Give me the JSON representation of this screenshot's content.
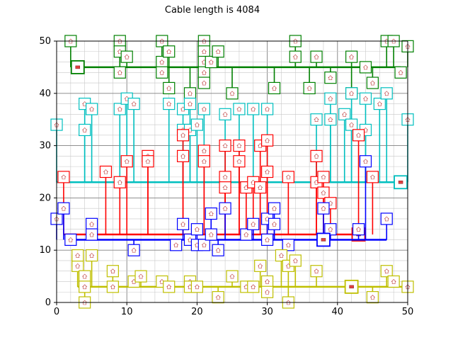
{
  "chart_data": {
    "type": "scatter",
    "title": "Cable length is 4084",
    "xlim": [
      0,
      50
    ],
    "ylim": [
      0,
      50
    ],
    "xticks": [
      0,
      10,
      20,
      30,
      40,
      50
    ],
    "yticks": [
      0,
      10,
      20,
      30,
      40,
      50
    ],
    "xticks_label": [
      "0",
      "10",
      "20",
      "30",
      "40",
      "50"
    ],
    "yticks_label": [
      "0",
      "10",
      "20",
      "30",
      "40",
      "50"
    ],
    "grid": true,
    "minor_grid_step": 2,
    "series": [
      {
        "color": "#008000",
        "hub": [
          3,
          45
        ],
        "trunk_y": 45,
        "trunk_x": [
          3,
          49
        ],
        "points": [
          [
            2,
            50
          ],
          [
            9,
            50
          ],
          [
            9,
            48
          ],
          [
            9,
            44
          ],
          [
            10,
            47
          ],
          [
            15,
            50
          ],
          [
            15,
            46
          ],
          [
            15,
            44
          ],
          [
            16,
            48
          ],
          [
            16,
            41
          ],
          [
            19,
            40
          ],
          [
            21,
            50
          ],
          [
            21,
            48
          ],
          [
            21,
            46
          ],
          [
            21,
            44
          ],
          [
            21,
            42
          ],
          [
            22,
            46
          ],
          [
            23,
            48
          ],
          [
            25,
            40
          ],
          [
            31,
            41
          ],
          [
            34,
            50
          ],
          [
            34,
            47
          ],
          [
            36,
            41
          ],
          [
            37,
            47
          ],
          [
            39,
            43
          ],
          [
            42,
            47
          ],
          [
            42,
            40
          ],
          [
            44,
            45
          ],
          [
            45,
            42
          ],
          [
            47,
            50
          ],
          [
            48,
            50
          ],
          [
            49,
            44
          ],
          [
            50,
            49
          ]
        ]
      },
      {
        "color": "#00bfbf",
        "hub": [
          49,
          23
        ],
        "trunk_y": 23,
        "trunk_x": [
          0,
          49
        ],
        "points": [
          [
            0,
            34
          ],
          [
            4,
            38
          ],
          [
            4,
            33
          ],
          [
            5,
            37
          ],
          [
            9,
            37
          ],
          [
            10,
            39
          ],
          [
            11,
            38
          ],
          [
            16,
            38
          ],
          [
            18,
            37
          ],
          [
            18,
            33
          ],
          [
            19,
            33
          ],
          [
            20,
            34
          ],
          [
            19,
            38
          ],
          [
            21,
            37
          ],
          [
            24,
            36
          ],
          [
            26,
            37
          ],
          [
            28,
            37
          ],
          [
            30,
            37
          ],
          [
            37,
            35
          ],
          [
            39,
            35
          ],
          [
            39,
            39
          ],
          [
            41,
            36
          ],
          [
            42,
            40
          ],
          [
            42,
            34
          ],
          [
            44,
            39
          ],
          [
            44,
            33
          ],
          [
            46,
            38
          ],
          [
            47,
            40
          ],
          [
            50,
            35
          ]
        ]
      },
      {
        "color": "#ff0000",
        "hub": [
          43,
          13
        ],
        "trunk_y": 13,
        "trunk_x": [
          1,
          43
        ],
        "points": [
          [
            1,
            24
          ],
          [
            7,
            25
          ],
          [
            9,
            23
          ],
          [
            10,
            27
          ],
          [
            13,
            28
          ],
          [
            13,
            27
          ],
          [
            18,
            28
          ],
          [
            18,
            32
          ],
          [
            21,
            29
          ],
          [
            21,
            27
          ],
          [
            24,
            30
          ],
          [
            24,
            24
          ],
          [
            24,
            22
          ],
          [
            26,
            27
          ],
          [
            26,
            30
          ],
          [
            27,
            22
          ],
          [
            28,
            23
          ],
          [
            29,
            22
          ],
          [
            29,
            30
          ],
          [
            30,
            25
          ],
          [
            30,
            31
          ],
          [
            33,
            24
          ],
          [
            37,
            28
          ],
          [
            37,
            23
          ],
          [
            38,
            24
          ],
          [
            38,
            21
          ],
          [
            39,
            19
          ],
          [
            43,
            32
          ],
          [
            45,
            24
          ]
        ]
      },
      {
        "color": "#0000ff",
        "hub": [
          38,
          12
        ],
        "trunk_y": 12,
        "trunk_x": [
          2,
          47
        ],
        "points": [
          [
            0,
            16
          ],
          [
            1,
            18
          ],
          [
            2,
            12
          ],
          [
            5,
            15
          ],
          [
            5,
            13
          ],
          [
            11,
            10
          ],
          [
            17,
            11
          ],
          [
            18,
            15
          ],
          [
            19,
            12
          ],
          [
            20,
            14
          ],
          [
            20,
            11
          ],
          [
            21,
            11
          ],
          [
            22,
            13
          ],
          [
            22,
            17
          ],
          [
            23,
            10
          ],
          [
            24,
            18
          ],
          [
            27,
            13
          ],
          [
            28,
            15
          ],
          [
            30,
            16
          ],
          [
            30,
            12
          ],
          [
            31,
            18
          ],
          [
            31,
            15
          ],
          [
            33,
            11
          ],
          [
            38,
            18
          ],
          [
            39,
            14
          ],
          [
            43,
            14
          ],
          [
            44,
            27
          ],
          [
            47,
            16
          ]
        ]
      },
      {
        "color": "#bfbf00",
        "hub": [
          42,
          3
        ],
        "trunk_y": 3,
        "trunk_x": [
          3,
          50
        ],
        "points": [
          [
            3,
            8
          ],
          [
            3,
            7
          ],
          [
            3,
            9
          ],
          [
            4,
            5
          ],
          [
            4,
            3
          ],
          [
            4,
            0
          ],
          [
            5,
            9
          ],
          [
            8,
            6
          ],
          [
            8,
            3
          ],
          [
            11,
            4
          ],
          [
            12,
            5
          ],
          [
            15,
            4
          ],
          [
            16,
            3
          ],
          [
            19,
            4
          ],
          [
            19,
            3
          ],
          [
            20,
            3
          ],
          [
            23,
            1
          ],
          [
            25,
            5
          ],
          [
            27,
            3
          ],
          [
            28,
            3
          ],
          [
            29,
            7
          ],
          [
            30,
            4
          ],
          [
            30,
            2
          ],
          [
            32,
            9
          ],
          [
            33,
            7
          ],
          [
            33,
            0
          ],
          [
            34,
            8
          ],
          [
            37,
            6
          ],
          [
            45,
            1
          ],
          [
            47,
            6
          ],
          [
            48,
            4
          ],
          [
            50,
            3
          ]
        ]
      }
    ]
  }
}
